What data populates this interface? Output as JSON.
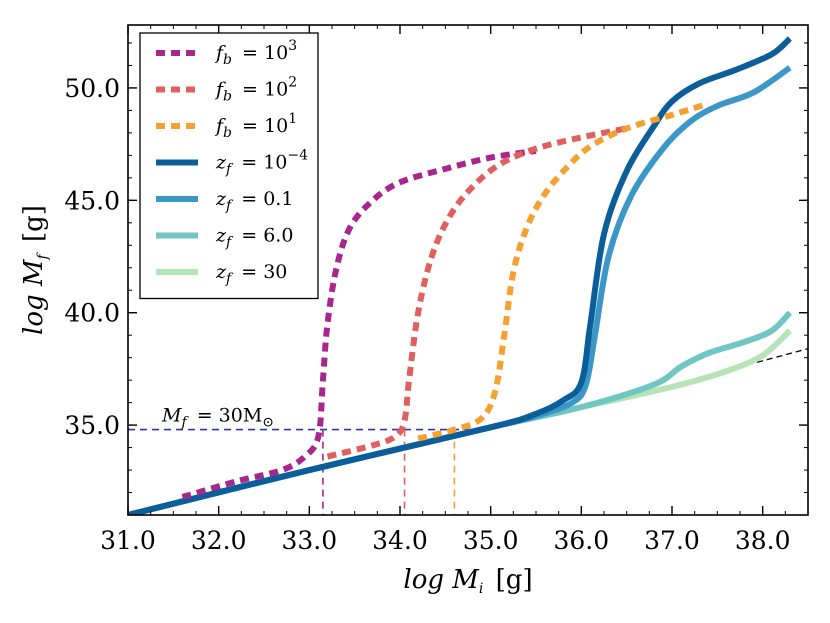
{
  "chart_data": {
    "type": "line",
    "xlabel": "log M_i [g]",
    "ylabel": "log M_f [g]",
    "xlim": [
      31.0,
      38.5
    ],
    "ylim": [
      31.0,
      52.8
    ],
    "x_ticks": [
      31.0,
      32.0,
      33.0,
      34.0,
      35.0,
      36.0,
      37.0,
      38.0
    ],
    "x_tick_labels": [
      "31.0",
      "32.0",
      "33.0",
      "34.0",
      "35.0",
      "36.0",
      "37.0",
      "38.0"
    ],
    "y_ticks": [
      35.0,
      40.0,
      45.0,
      50.0
    ],
    "y_tick_labels": [
      "35.0",
      "40.0",
      "45.0",
      "50.0"
    ],
    "legend_position": "top-left",
    "series": [
      {
        "name": "f_b = 10^3",
        "label_base": "f",
        "label_sub": "b",
        "label_rhs": "= 10",
        "label_sup": "3",
        "color": "#a8278f",
        "style": "dotted",
        "x": [
          31.6,
          32.2,
          32.7,
          32.95,
          33.1,
          33.15,
          33.2,
          33.3,
          33.45,
          33.7,
          34.0,
          34.5,
          35.0,
          35.5
        ],
        "y": [
          31.8,
          32.5,
          33.0,
          33.6,
          34.5,
          37.0,
          39.5,
          42.0,
          43.8,
          45.0,
          45.8,
          46.4,
          46.9,
          47.2
        ]
      },
      {
        "name": "f_b = 10^2",
        "label_base": "f",
        "label_sub": "b",
        "label_rhs": "= 10",
        "label_sup": "2",
        "color": "#e0605e",
        "style": "dotted",
        "x": [
          33.2,
          33.7,
          33.95,
          34.05,
          34.1,
          34.2,
          34.35,
          34.55,
          34.8,
          35.1,
          35.5,
          36.0,
          36.5
        ],
        "y": [
          33.6,
          34.1,
          34.5,
          35.2,
          37.0,
          40.0,
          42.5,
          44.3,
          45.6,
          46.6,
          47.3,
          47.8,
          48.2
        ]
      },
      {
        "name": "f_b = 10^1",
        "label_base": "f",
        "label_sub": "b",
        "label_rhs": "= 10",
        "label_sup": "1",
        "color": "#f5a031",
        "style": "dotted",
        "x": [
          34.2,
          34.6,
          34.9,
          35.05,
          35.15,
          35.25,
          35.4,
          35.6,
          35.85,
          36.1,
          36.5,
          37.0,
          37.4
        ],
        "y": [
          34.4,
          34.8,
          35.3,
          36.5,
          39.0,
          41.8,
          43.8,
          45.3,
          46.5,
          47.4,
          48.2,
          48.8,
          49.3
        ]
      },
      {
        "name": "z_f = 10^-4",
        "label_base": "z",
        "label_sub": "f",
        "label_rhs": "= 10",
        "label_sup": "−4",
        "color": "#0b5e9a",
        "style": "solid",
        "x": [
          31.0,
          33.0,
          35.0,
          35.5,
          35.8,
          36.0,
          36.1,
          36.25,
          36.5,
          36.8,
          37.0,
          37.3,
          37.7,
          38.1,
          38.3
        ],
        "y": [
          31.0,
          33.0,
          34.9,
          35.5,
          36.1,
          36.9,
          39.5,
          43.5,
          46.3,
          48.3,
          49.4,
          50.2,
          50.8,
          51.5,
          52.2
        ]
      },
      {
        "name": "z_f = 0.1",
        "label_base": "z",
        "label_sub": "f",
        "label_rhs": "= 0.1",
        "label_sup": "",
        "color": "#3c97c9",
        "style": "solid",
        "x": [
          31.0,
          33.0,
          35.0,
          35.5,
          35.9,
          36.05,
          36.15,
          36.3,
          36.55,
          36.9,
          37.2,
          37.5,
          37.9,
          38.3
        ],
        "y": [
          31.0,
          33.0,
          34.9,
          35.4,
          36.0,
          36.8,
          39.0,
          42.5,
          45.2,
          47.3,
          48.5,
          49.2,
          49.8,
          50.9
        ]
      },
      {
        "name": "z_f = 6.0",
        "label_base": "z",
        "label_sub": "f",
        "label_rhs": "= 6.0",
        "label_sup": "",
        "color": "#6fc6c3",
        "style": "solid",
        "x": [
          31.0,
          33.0,
          35.0,
          36.0,
          36.8,
          37.1,
          37.4,
          37.8,
          38.1,
          38.3
        ],
        "y": [
          31.0,
          33.0,
          34.9,
          35.8,
          36.8,
          37.6,
          38.2,
          38.7,
          39.2,
          40.0
        ]
      },
      {
        "name": "z_f = 30",
        "label_base": "z",
        "label_sub": "f",
        "label_rhs": "= 30",
        "label_sup": "",
        "color": "#b7e3b7",
        "style": "solid",
        "x": [
          31.0,
          33.0,
          35.0,
          36.0,
          37.0,
          37.6,
          38.0,
          38.3
        ],
        "y": [
          31.0,
          33.0,
          34.9,
          35.8,
          36.7,
          37.4,
          38.1,
          39.2
        ]
      }
    ],
    "asymptote": {
      "color": "#000000",
      "style": "dashed",
      "x": [
        37.3,
        38.5
      ],
      "y": [
        37.1,
        38.4
      ]
    },
    "annotation": {
      "label": "M_f = 30M_⊙",
      "label_base": "M",
      "label_sub": "f",
      "label_rhs": "= 30M",
      "label_sub2": "⊙",
      "y_value": 34.8,
      "color": "#3333aa",
      "x_start": 31.0,
      "x_end": 34.8,
      "drop_lines": [
        {
          "x": 33.15,
          "color": "#a8278f"
        },
        {
          "x": 34.05,
          "color": "#e0605e"
        },
        {
          "x": 34.6,
          "color": "#f5a031"
        }
      ]
    }
  }
}
